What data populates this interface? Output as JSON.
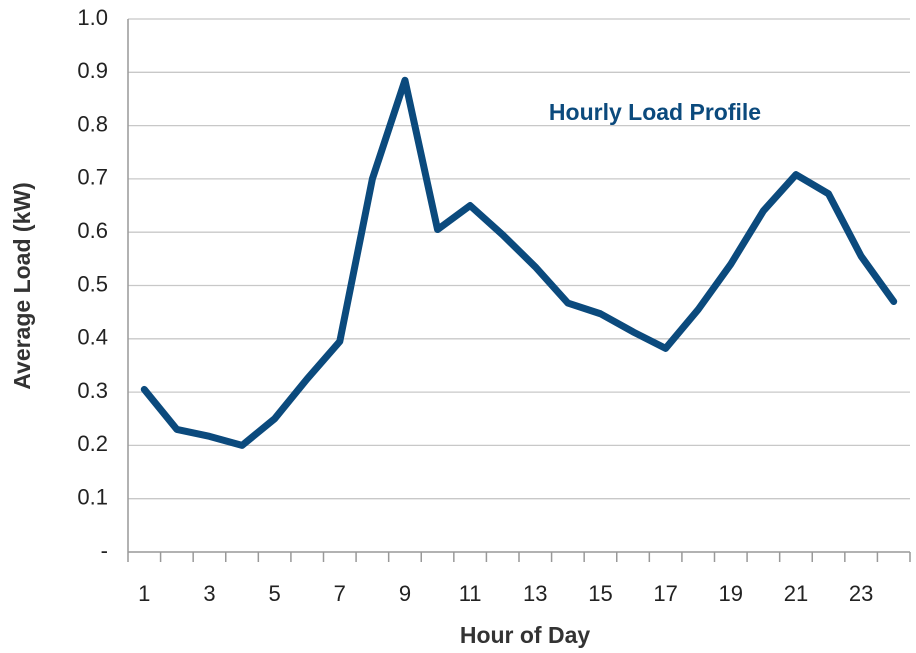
{
  "chart_data": {
    "type": "line",
    "title": "Hourly Load Profile",
    "x_label": "Hour of Day",
    "y_label": "Average Load (kW)",
    "categories": [
      "1",
      null,
      "3",
      null,
      "5",
      null,
      "7",
      null,
      "9",
      null,
      "11",
      null,
      "13",
      null,
      "15",
      null,
      "17",
      null,
      "19",
      null,
      "21",
      null,
      "23",
      null
    ],
    "series": [
      {
        "name": "Hourly Load Profile",
        "color": "#0b4a7d",
        "values": [
          0.305,
          0.23,
          0.217,
          0.2,
          0.25,
          0.325,
          0.395,
          0.7,
          0.885,
          0.605,
          0.65,
          0.595,
          0.535,
          0.467,
          0.447,
          0.413,
          0.382,
          0.455,
          0.54,
          0.64,
          0.708,
          0.672,
          0.555,
          0.47
        ]
      }
    ],
    "ylim": [
      0,
      1
    ],
    "yticks": [
      {
        "value": 0,
        "label": "-"
      },
      0.1,
      0.2,
      0.3,
      0.4,
      0.5,
      0.6,
      0.7,
      0.8,
      0.9,
      {
        "value": 1,
        "label": "1.0"
      }
    ],
    "grid": true
  }
}
